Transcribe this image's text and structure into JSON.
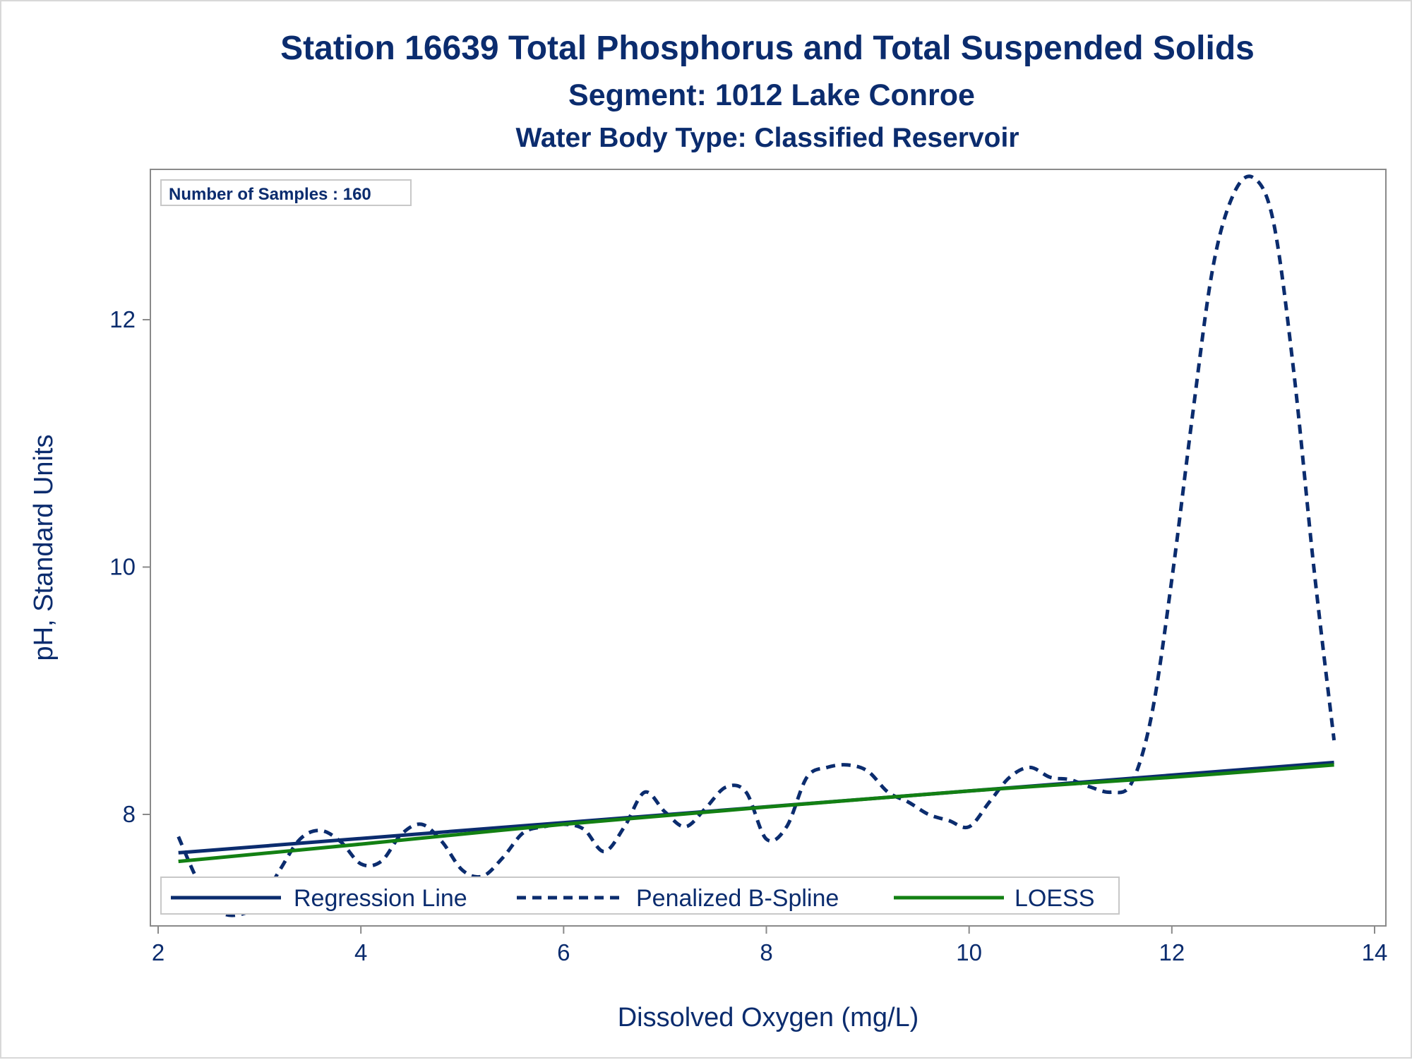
{
  "titles": {
    "line1": "Station 16639  Total Phosphorus and Total Suspended Solids",
    "line2": "Segment: 1012  Lake Conroe",
    "line3": "Water Body Type: Classified Reservoir"
  },
  "inset": {
    "text": "Number of Samples : 160"
  },
  "chart_data": {
    "type": "line",
    "xlabel": "Dissolved Oxygen (mg/L)",
    "ylabel": "pH, Standard Units",
    "xlim": [
      2,
      14
    ],
    "ylim": [
      7.15,
      13.25
    ],
    "xticks": [
      "2",
      "4",
      "6",
      "8",
      "10",
      "12",
      "14"
    ],
    "yticks": [
      "8",
      "10",
      "12"
    ],
    "grid": false,
    "legend_position": "bottom-inside",
    "colors": {
      "text": "#0b2c6e",
      "regression": "#0b2c6e",
      "spline": "#0b2c6e",
      "loess": "#138013",
      "axis": "#8a8a8a"
    },
    "series": [
      {
        "name": "Regression Line",
        "style": "solid",
        "x": [
          2.2,
          13.6
        ],
        "y": [
          7.69,
          8.42
        ]
      },
      {
        "name": "Penalized B-Spline",
        "style": "dashed",
        "x": [
          2.2,
          2.4,
          2.6,
          2.8,
          3.0,
          3.2,
          3.4,
          3.6,
          3.8,
          4.0,
          4.2,
          4.4,
          4.6,
          4.8,
          5.0,
          5.2,
          5.4,
          5.6,
          5.8,
          6.0,
          6.2,
          6.4,
          6.6,
          6.8,
          7.0,
          7.2,
          7.4,
          7.6,
          7.8,
          8.0,
          8.2,
          8.4,
          8.6,
          8.8,
          9.0,
          9.2,
          9.4,
          9.6,
          9.8,
          10.0,
          10.2,
          10.4,
          10.6,
          10.8,
          11.0,
          11.2,
          11.4,
          11.6,
          11.8,
          12.0,
          12.2,
          12.4,
          12.6,
          12.8,
          13.0,
          13.2,
          13.4,
          13.6
        ],
        "y": [
          7.82,
          7.45,
          7.22,
          7.19,
          7.28,
          7.55,
          7.8,
          7.87,
          7.78,
          7.6,
          7.62,
          7.84,
          7.92,
          7.78,
          7.55,
          7.5,
          7.65,
          7.85,
          7.9,
          7.92,
          7.88,
          7.7,
          7.9,
          8.18,
          8.02,
          7.9,
          8.05,
          8.22,
          8.18,
          7.8,
          7.9,
          8.3,
          8.38,
          8.4,
          8.35,
          8.18,
          8.1,
          8.0,
          7.95,
          7.9,
          8.1,
          8.3,
          8.38,
          8.3,
          8.28,
          8.22,
          8.18,
          8.25,
          8.8,
          9.9,
          11.2,
          12.4,
          13.0,
          13.15,
          12.8,
          11.6,
          10.0,
          8.6
        ]
      },
      {
        "name": "LOESS",
        "style": "solid",
        "x": [
          2.2,
          4.0,
          6.0,
          8.0,
          10.0,
          12.0,
          13.6
        ],
        "y": [
          7.62,
          7.76,
          7.92,
          8.06,
          8.19,
          8.3,
          8.4
        ]
      }
    ]
  }
}
